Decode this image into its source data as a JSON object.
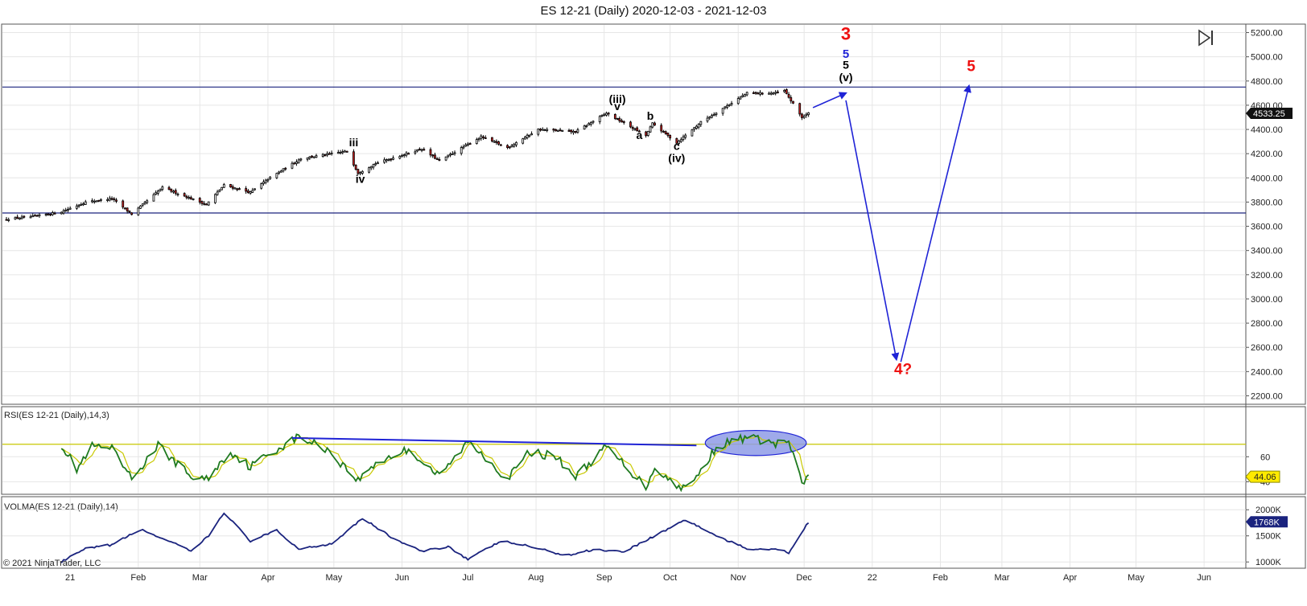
{
  "window": {
    "title": "ES 12-21 (Daily)  2020-12-03 - 2021-12-03"
  },
  "chart_data": {
    "type": "candlestick",
    "title": "ES 12-21 (Daily)  2020-12-03 - 2021-12-03",
    "copyright": "© 2021 NinjaTrader, LLC",
    "price_panel": {
      "ylim": [
        2130,
        5270
      ],
      "yticks": [
        2200,
        2400,
        2600,
        2800,
        3000,
        3200,
        3400,
        3600,
        3800,
        4000,
        4200,
        4400,
        4600,
        4800,
        5000,
        5200
      ],
      "ytick_labels": [
        "2200.00",
        "2400.00",
        "2600.00",
        "2800.00",
        "3000.00",
        "3200.00",
        "3400.00",
        "3600.00",
        "3800.00",
        "4000.00",
        "4200.00",
        "4400.00",
        "4600.00",
        "4800.00",
        "5000.00",
        "5200.00"
      ],
      "last_price": "4533.25",
      "close_series": [
        {
          "x": "2020-12-03",
          "y": 3660
        },
        {
          "x": "2020-12-15",
          "y": 3680
        },
        {
          "x": "2020-12-28",
          "y": 3720
        },
        {
          "x": "2021-01-08",
          "y": 3800
        },
        {
          "x": "2021-01-20",
          "y": 3830
        },
        {
          "x": "2021-01-29",
          "y": 3700
        },
        {
          "x": "2021-02-12",
          "y": 3920
        },
        {
          "x": "2021-03-04",
          "y": 3780
        },
        {
          "x": "2021-03-12",
          "y": 3940
        },
        {
          "x": "2021-03-24",
          "y": 3880
        },
        {
          "x": "2021-04-01",
          "y": 3990
        },
        {
          "x": "2021-04-16",
          "y": 4160
        },
        {
          "x": "2021-05-07",
          "y": 4220
        },
        {
          "x": "2021-05-12",
          "y": 4040
        },
        {
          "x": "2021-05-20",
          "y": 4120
        },
        {
          "x": "2021-06-10",
          "y": 4240
        },
        {
          "x": "2021-06-18",
          "y": 4140
        },
        {
          "x": "2021-07-07",
          "y": 4340
        },
        {
          "x": "2021-07-19",
          "y": 4250
        },
        {
          "x": "2021-08-02",
          "y": 4400
        },
        {
          "x": "2021-08-19",
          "y": 4380
        },
        {
          "x": "2021-09-02",
          "y": 4535
        },
        {
          "x": "2021-09-20",
          "y": 4350
        },
        {
          "x": "2021-09-23",
          "y": 4450
        },
        {
          "x": "2021-10-04",
          "y": 4290
        },
        {
          "x": "2021-10-15",
          "y": 4460
        },
        {
          "x": "2021-11-05",
          "y": 4700
        },
        {
          "x": "2021-11-18",
          "y": 4700
        },
        {
          "x": "2021-11-22",
          "y": 4720
        },
        {
          "x": "2021-11-30",
          "y": 4500
        },
        {
          "x": "2021-12-03",
          "y": 4533
        }
      ],
      "hlines": [
        4750,
        3710
      ],
      "wave_labels": [
        {
          "text": "iii",
          "x": "2021-05-10",
          "y": 4260,
          "color": "#000000"
        },
        {
          "text": "iv",
          "x": "2021-05-13",
          "y": 3960,
          "color": "#000000"
        },
        {
          "text": "(iii)",
          "x": "2021-09-07",
          "y": 4620,
          "color": "#000000"
        },
        {
          "text": "v",
          "x": "2021-09-07",
          "y": 4560,
          "color": "#000000"
        },
        {
          "text": "a",
          "x": "2021-09-17",
          "y": 4320,
          "color": "#000000"
        },
        {
          "text": "b",
          "x": "2021-09-22",
          "y": 4480,
          "color": "#000000"
        },
        {
          "text": "c",
          "x": "2021-10-04",
          "y": 4230,
          "color": "#000000"
        },
        {
          "text": "(iv)",
          "x": "2021-10-04",
          "y": 4130,
          "color": "#000000"
        },
        {
          "text": "3",
          "x": "2021-12-20",
          "y": 5140,
          "color": "#ee1111"
        },
        {
          "text": "5",
          "x": "2021-12-20",
          "y": 4990,
          "color": "#1f23d6"
        },
        {
          "text": "5",
          "x": "2021-12-20",
          "y": 4900,
          "color": "#000000"
        },
        {
          "text": "(v)",
          "x": "2021-12-20",
          "y": 4800,
          "color": "#000000"
        },
        {
          "text": "5",
          "x": "2022-02-15",
          "y": 4880,
          "color": "#ee1111"
        },
        {
          "text": "4?",
          "x": "2022-01-15",
          "y": 2380,
          "color": "#ee1111"
        }
      ],
      "projection_arrows": [
        {
          "from": {
            "x": "2021-12-05",
            "y": 4580
          },
          "to": {
            "x": "2021-12-20",
            "y": 4700
          }
        },
        {
          "from": {
            "x": "2021-12-20",
            "y": 4640
          },
          "to": {
            "x": "2022-01-12",
            "y": 2500
          }
        },
        {
          "from": {
            "x": "2022-01-14",
            "y": 2480
          },
          "to": {
            "x": "2022-02-14",
            "y": 4760
          }
        }
      ]
    },
    "rsi_panel": {
      "title": "RSI(ES 12-21 (Daily),14,3)",
      "ylim": [
        30,
        100
      ],
      "yticks": [
        40,
        60
      ],
      "ytick_labels": [
        "40",
        "60"
      ],
      "level_line": 70,
      "last_value": "44.06",
      "series": [
        {
          "x": "2020-12-28",
          "y": 70
        },
        {
          "x": "2021-01-04",
          "y": 50
        },
        {
          "x": "2021-01-11",
          "y": 68
        },
        {
          "x": "2021-01-20",
          "y": 66
        },
        {
          "x": "2021-01-29",
          "y": 42
        },
        {
          "x": "2021-02-10",
          "y": 69
        },
        {
          "x": "2021-02-25",
          "y": 44
        },
        {
          "x": "2021-03-04",
          "y": 42
        },
        {
          "x": "2021-03-15",
          "y": 64
        },
        {
          "x": "2021-03-24",
          "y": 52
        },
        {
          "x": "2021-04-01",
          "y": 62
        },
        {
          "x": "2021-04-15",
          "y": 76
        },
        {
          "x": "2021-04-28",
          "y": 66
        },
        {
          "x": "2021-05-12",
          "y": 41
        },
        {
          "x": "2021-05-20",
          "y": 55
        },
        {
          "x": "2021-06-04",
          "y": 66
        },
        {
          "x": "2021-06-18",
          "y": 44
        },
        {
          "x": "2021-07-01",
          "y": 72
        },
        {
          "x": "2021-07-09",
          "y": 60
        },
        {
          "x": "2021-07-19",
          "y": 42
        },
        {
          "x": "2021-07-29",
          "y": 64
        },
        {
          "x": "2021-08-10",
          "y": 60
        },
        {
          "x": "2021-08-19",
          "y": 44
        },
        {
          "x": "2021-09-02",
          "y": 68
        },
        {
          "x": "2021-09-20",
          "y": 36
        },
        {
          "x": "2021-09-24",
          "y": 52
        },
        {
          "x": "2021-10-04",
          "y": 36
        },
        {
          "x": "2021-10-11",
          "y": 38
        },
        {
          "x": "2021-10-22",
          "y": 68
        },
        {
          "x": "2021-11-05",
          "y": 76
        },
        {
          "x": "2021-11-18",
          "y": 70
        },
        {
          "x": "2021-11-24",
          "y": 72
        },
        {
          "x": "2021-11-30",
          "y": 38
        },
        {
          "x": "2021-12-03",
          "y": 44
        }
      ],
      "trendline": {
        "from": {
          "x": "2021-04-12",
          "y": 75
        },
        "to": {
          "x": "2021-10-13",
          "y": 69
        }
      },
      "highlight_ellipse": {
        "center": {
          "x": "2021-11-09",
          "y": 71
        },
        "rx_days": 23,
        "ry": 10
      }
    },
    "volma_panel": {
      "title": "VOLMA(ES 12-21 (Daily),14)",
      "ylim": [
        880,
        2250
      ],
      "yticks": [
        1000,
        1500,
        2000
      ],
      "ytick_labels": [
        "1000K",
        "1500K",
        "2000K"
      ],
      "last_value": "1768K",
      "series": [
        {
          "x": "2020-12-28",
          "y": 1000
        },
        {
          "x": "2021-01-08",
          "y": 1250
        },
        {
          "x": "2021-01-20",
          "y": 1330
        },
        {
          "x": "2021-02-02",
          "y": 1620
        },
        {
          "x": "2021-02-15",
          "y": 1400
        },
        {
          "x": "2021-02-25",
          "y": 1200
        },
        {
          "x": "2021-03-05",
          "y": 1500
        },
        {
          "x": "2021-03-12",
          "y": 1950
        },
        {
          "x": "2021-03-24",
          "y": 1400
        },
        {
          "x": "2021-04-05",
          "y": 1600
        },
        {
          "x": "2021-04-15",
          "y": 1250
        },
        {
          "x": "2021-04-30",
          "y": 1350
        },
        {
          "x": "2021-05-14",
          "y": 1840
        },
        {
          "x": "2021-05-28",
          "y": 1450
        },
        {
          "x": "2021-06-10",
          "y": 1200
        },
        {
          "x": "2021-06-22",
          "y": 1300
        },
        {
          "x": "2021-07-01",
          "y": 1050
        },
        {
          "x": "2021-07-16",
          "y": 1400
        },
        {
          "x": "2021-07-29",
          "y": 1300
        },
        {
          "x": "2021-08-15",
          "y": 1120
        },
        {
          "x": "2021-08-27",
          "y": 1240
        },
        {
          "x": "2021-09-10",
          "y": 1200
        },
        {
          "x": "2021-09-24",
          "y": 1500
        },
        {
          "x": "2021-10-08",
          "y": 1810
        },
        {
          "x": "2021-10-22",
          "y": 1500
        },
        {
          "x": "2021-11-05",
          "y": 1250
        },
        {
          "x": "2021-11-18",
          "y": 1250
        },
        {
          "x": "2021-11-24",
          "y": 1180
        },
        {
          "x": "2021-12-03",
          "y": 1768
        }
      ]
    },
    "x_axis": {
      "range": [
        "2020-12-03",
        "2022-06-20"
      ],
      "ticks": [
        {
          "label": "21",
          "x": "2021-01-01"
        },
        {
          "label": "Feb",
          "x": "2021-02-01"
        },
        {
          "label": "Mar",
          "x": "2021-03-01"
        },
        {
          "label": "Apr",
          "x": "2021-04-01"
        },
        {
          "label": "May",
          "x": "2021-05-01"
        },
        {
          "label": "Jun",
          "x": "2021-06-01"
        },
        {
          "label": "Jul",
          "x": "2021-07-01"
        },
        {
          "label": "Aug",
          "x": "2021-08-01"
        },
        {
          "label": "Sep",
          "x": "2021-09-01"
        },
        {
          "label": "Oct",
          "x": "2021-10-01"
        },
        {
          "label": "Nov",
          "x": "2021-11-01"
        },
        {
          "label": "Dec",
          "x": "2021-12-01"
        },
        {
          "label": "22",
          "x": "2022-01-01"
        },
        {
          "label": "Feb",
          "x": "2022-02-01"
        },
        {
          "label": "Mar",
          "x": "2022-03-01"
        },
        {
          "label": "Apr",
          "x": "2022-04-01"
        },
        {
          "label": "May",
          "x": "2022-05-01"
        },
        {
          "label": "Jun",
          "x": "2022-06-01"
        }
      ]
    },
    "colors": {
      "candle_up": "#ffffff",
      "candle_down": "#cc2222",
      "wick": "#000000",
      "hline": "#1a237e",
      "arrow": "#1f23d6",
      "rsi": "#1f7a1f",
      "rsi_signal": "#c9c900",
      "rsi_level": "#c8c800",
      "rsi_trend": "#1f23d6",
      "ellipse": "#8e9be6",
      "volma": "#1a237e",
      "grid": "#e6e6e6",
      "badge": "#111111",
      "badge_yellow": "#ffea00",
      "badge_navy": "#1a237e"
    }
  }
}
